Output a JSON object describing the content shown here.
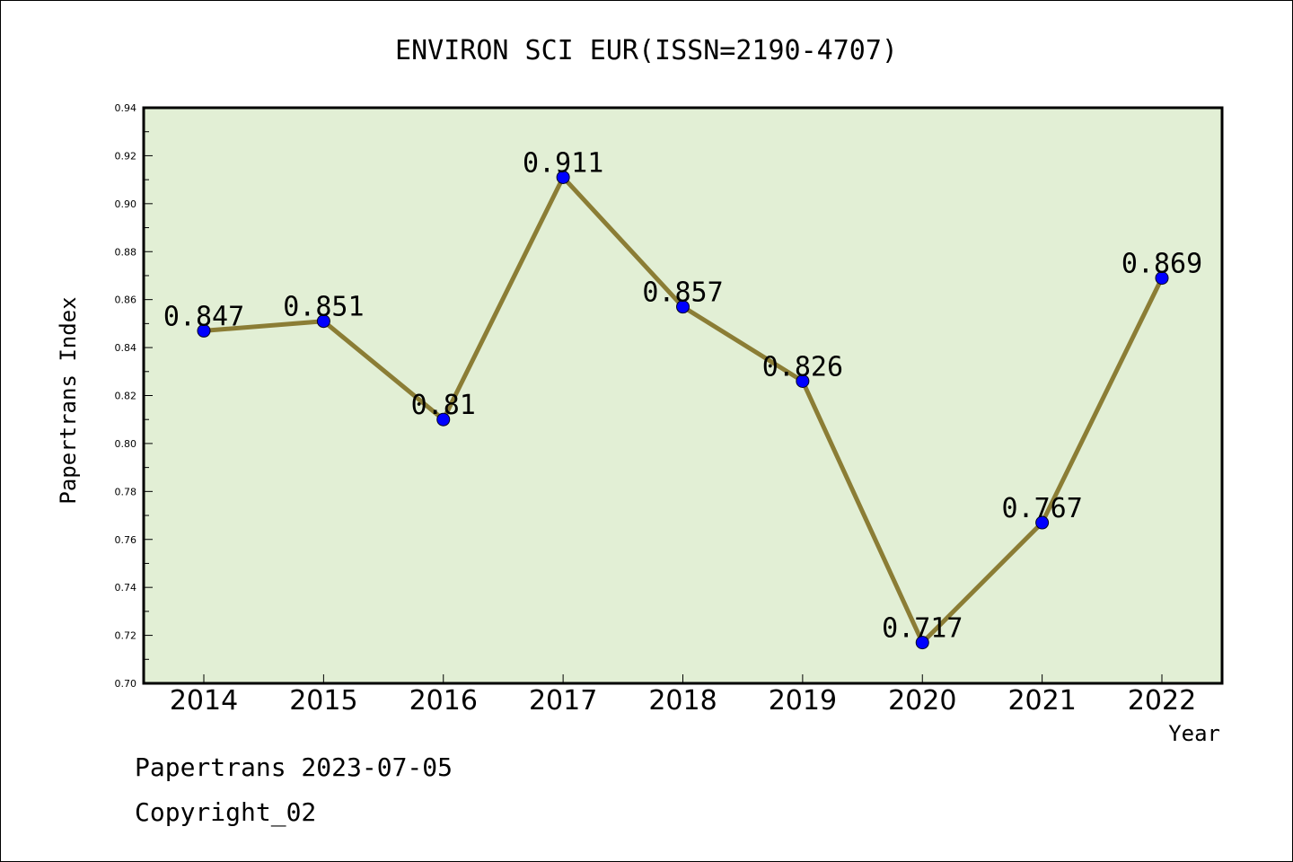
{
  "chart_data": {
    "type": "line",
    "title": "ENVIRON SCI EUR(ISSN=2190-4707)",
    "xlabel": "Year",
    "ylabel": "Papertrans Index",
    "categories": [
      "2014",
      "2015",
      "2016",
      "2017",
      "2018",
      "2019",
      "2020",
      "2021",
      "2022"
    ],
    "series": [
      {
        "values": [
          0.847,
          0.851,
          0.81,
          0.911,
          0.857,
          0.826,
          0.717,
          0.767,
          0.869
        ],
        "labels": [
          "0.847",
          "0.851",
          "0.81",
          "0.911",
          "0.857",
          "0.826",
          "0.717",
          "0.767",
          "0.869"
        ]
      }
    ],
    "ylim": [
      0.7,
      0.94
    ],
    "yticks": [
      "0.70",
      "0.72",
      "0.74",
      "0.76",
      "0.78",
      "0.80",
      "0.82",
      "0.84",
      "0.86",
      "0.88",
      "0.90",
      "0.92",
      "0.94"
    ],
    "grid": false,
    "legend": "none",
    "colors": {
      "plot_background": "#e2efd5",
      "line": "#8b7d35",
      "marker": "#0000ff"
    }
  },
  "footer": {
    "line1": "Papertrans 2023-07-05",
    "line2": "Copyright_02"
  }
}
